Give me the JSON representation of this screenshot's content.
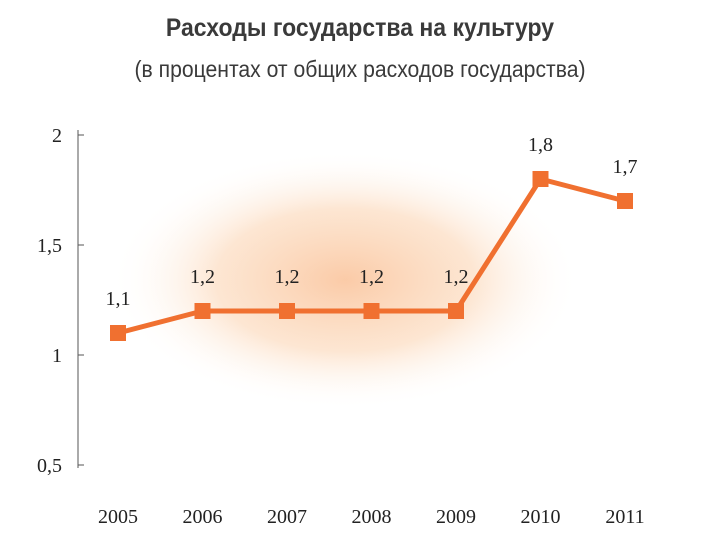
{
  "chart_data": {
    "type": "line",
    "title": "Расходы государства на культуру",
    "subtitle": "(в процентах от общих расходов государства)",
    "categories": [
      "2005",
      "2006",
      "2007",
      "2008",
      "2009",
      "2010",
      "2011"
    ],
    "series": [
      {
        "values": [
          1.1,
          1.2,
          1.2,
          1.2,
          1.2,
          1.8,
          1.7
        ],
        "labels": [
          "1,1",
          "1,2",
          "1,2",
          "1,2",
          "1,2",
          "1,8",
          "1,7"
        ],
        "color": "#f07030"
      }
    ],
    "y_ticks": [
      {
        "value": 2,
        "label": "2"
      },
      {
        "value": 1.5,
        "label": "1,5"
      },
      {
        "value": 1,
        "label": "1"
      },
      {
        "value": 0.5,
        "label": "0,5"
      }
    ],
    "ylim": [
      0.5,
      2
    ],
    "xlabel": "",
    "ylabel": "",
    "grid": false,
    "legend": "none",
    "glow_color": "#f7a060"
  }
}
